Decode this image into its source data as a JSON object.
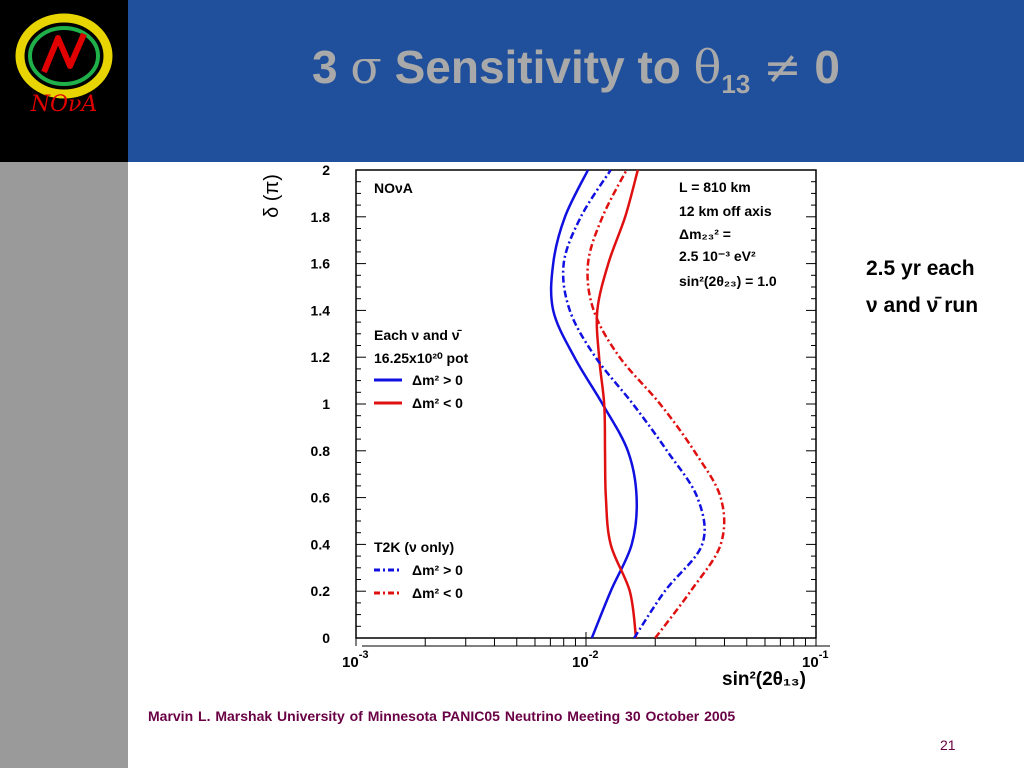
{
  "slide": {
    "title_prefix": "3",
    "title_sigma": "σ",
    "title_middle": "Sensitivity to",
    "title_theta": "θ",
    "title_sub": "13",
    "title_neq": "≠",
    "title_end": "0",
    "logo_text": "NOνA",
    "side_note_line1": "2.5 yr each",
    "side_note_line2": "ν and ν̄ run",
    "footer": "Marvin L. Marshak   University of Minnesota    PANIC05 Neutrino Meeting    30 October 2005",
    "page_number": "21",
    "colors": {
      "title_bar": "#20509b",
      "title_text": "#a9a9a9",
      "sidebar": "#9a9a9a",
      "footer_text": "#6a0044"
    }
  },
  "chart_data": {
    "type": "line",
    "x_scale": "log",
    "xlim": [
      0.001,
      0.1
    ],
    "ylim": [
      0,
      2
    ],
    "ylabel": "δ (π)",
    "xlabel": "sin²(2θ₁₃)",
    "x_ticks": [
      {
        "value": 0.001,
        "base": "10",
        "exp": "-3"
      },
      {
        "value": 0.01,
        "base": "10",
        "exp": "-2"
      },
      {
        "value": 0.1,
        "base": "10",
        "exp": "-1"
      }
    ],
    "y_ticks": [
      "0",
      "0.2",
      "0.4",
      "0.6",
      "0.8",
      "1",
      "1.2",
      "1.4",
      "1.6",
      "1.8",
      "2"
    ],
    "y_tick_values": [
      0,
      0.2,
      0.4,
      0.6,
      0.8,
      1,
      1.2,
      1.4,
      1.6,
      1.8,
      2
    ],
    "annotations": {
      "experiment": "NOνA",
      "params": [
        "L = 810 km",
        "12 km off axis",
        "Δm₂₃² =",
        " 2.5 10⁻³ eV²",
        "sin²(2θ₂₃) = 1.0"
      ],
      "nova_header": [
        "Each ν and ν̄",
        "16.25x10²⁰ pot"
      ],
      "t2k_header": "T2K (ν only)"
    },
    "series": [
      {
        "name": "Δm² > 0",
        "group": "NOνA",
        "color": "#1010e0",
        "dash": "solid",
        "points": [
          [
            0.0106,
            0
          ],
          [
            0.0128,
            0.2
          ],
          [
            0.0158,
            0.4
          ],
          [
            0.0166,
            0.6
          ],
          [
            0.0152,
            0.8
          ],
          [
            0.0118,
            1.0
          ],
          [
            0.0089,
            1.2
          ],
          [
            0.0072,
            1.4
          ],
          [
            0.0072,
            1.6
          ],
          [
            0.0081,
            1.8
          ],
          [
            0.0102,
            2.0
          ]
        ]
      },
      {
        "name": "Δm² < 0",
        "group": "NOνA",
        "color": "#e01010",
        "dash": "solid",
        "points": [
          [
            0.0165,
            0
          ],
          [
            0.0155,
            0.2
          ],
          [
            0.0128,
            0.4
          ],
          [
            0.0122,
            0.6
          ],
          [
            0.0121,
            0.8
          ],
          [
            0.012,
            1.0
          ],
          [
            0.0114,
            1.2
          ],
          [
            0.0112,
            1.4
          ],
          [
            0.0125,
            1.6
          ],
          [
            0.0148,
            1.8
          ],
          [
            0.0168,
            2.0
          ]
        ]
      },
      {
        "name": "Δm² > 0",
        "group": "T2K (ν only)",
        "color": "#1010e0",
        "dash": "dashdot",
        "points": [
          [
            0.0162,
            0
          ],
          [
            0.022,
            0.2
          ],
          [
            0.032,
            0.4
          ],
          [
            0.0305,
            0.6
          ],
          [
            0.0225,
            0.8
          ],
          [
            0.016,
            1.0
          ],
          [
            0.011,
            1.2
          ],
          [
            0.0085,
            1.4
          ],
          [
            0.008,
            1.6
          ],
          [
            0.0095,
            1.8
          ],
          [
            0.0128,
            2.0
          ]
        ]
      },
      {
        "name": "Δm² < 0",
        "group": "T2K (ν only)",
        "color": "#e01010",
        "dash": "dashdot",
        "points": [
          [
            0.02,
            0
          ],
          [
            0.0285,
            0.2
          ],
          [
            0.0385,
            0.4
          ],
          [
            0.0385,
            0.6
          ],
          [
            0.0295,
            0.8
          ],
          [
            0.021,
            1.0
          ],
          [
            0.014,
            1.2
          ],
          [
            0.0108,
            1.4
          ],
          [
            0.0102,
            1.6
          ],
          [
            0.0118,
            1.8
          ],
          [
            0.015,
            2.0
          ]
        ]
      }
    ]
  }
}
